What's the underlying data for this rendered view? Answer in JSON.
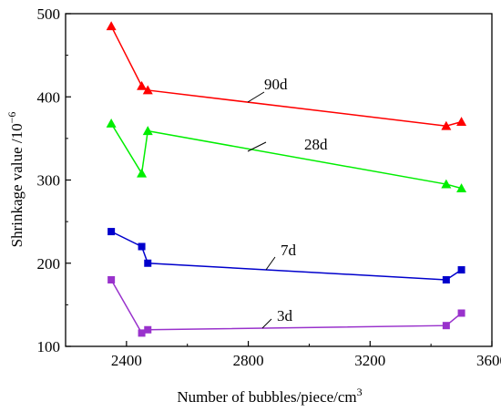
{
  "chart_data": {
    "type": "line",
    "xlabel": "Number of bubbles/piece/cm",
    "xlabel_sup": "3",
    "ylabel": "Shrinkage value /10",
    "ylabel_sup": "−6",
    "xlim": [
      2200,
      3600
    ],
    "ylim": [
      100,
      500
    ],
    "xticks": [
      2400,
      2800,
      3200,
      3600
    ],
    "yticks": [
      100,
      200,
      300,
      400,
      500
    ],
    "grid": false,
    "legend": "none",
    "series": [
      {
        "name": "90d",
        "color": "#ff0000",
        "marker": "triangle",
        "x": [
          2350,
          2450,
          2470,
          3450,
          3500
        ],
        "y": [
          485,
          413,
          408,
          365,
          370
        ]
      },
      {
        "name": "28d",
        "color": "#00ee00",
        "marker": "triangle",
        "x": [
          2350,
          2450,
          2470,
          3450,
          3500
        ],
        "y": [
          368,
          308,
          359,
          295,
          290
        ]
      },
      {
        "name": "7d",
        "color": "#0000cc",
        "marker": "square",
        "x": [
          2350,
          2450,
          2470,
          3450,
          3500
        ],
        "y": [
          238,
          220,
          200,
          180,
          192
        ]
      },
      {
        "name": "3d",
        "color": "#9932cc",
        "marker": "square",
        "x": [
          2350,
          2450,
          2470,
          3450,
          3500
        ],
        "y": [
          180,
          116,
          120,
          125,
          140
        ]
      }
    ]
  }
}
